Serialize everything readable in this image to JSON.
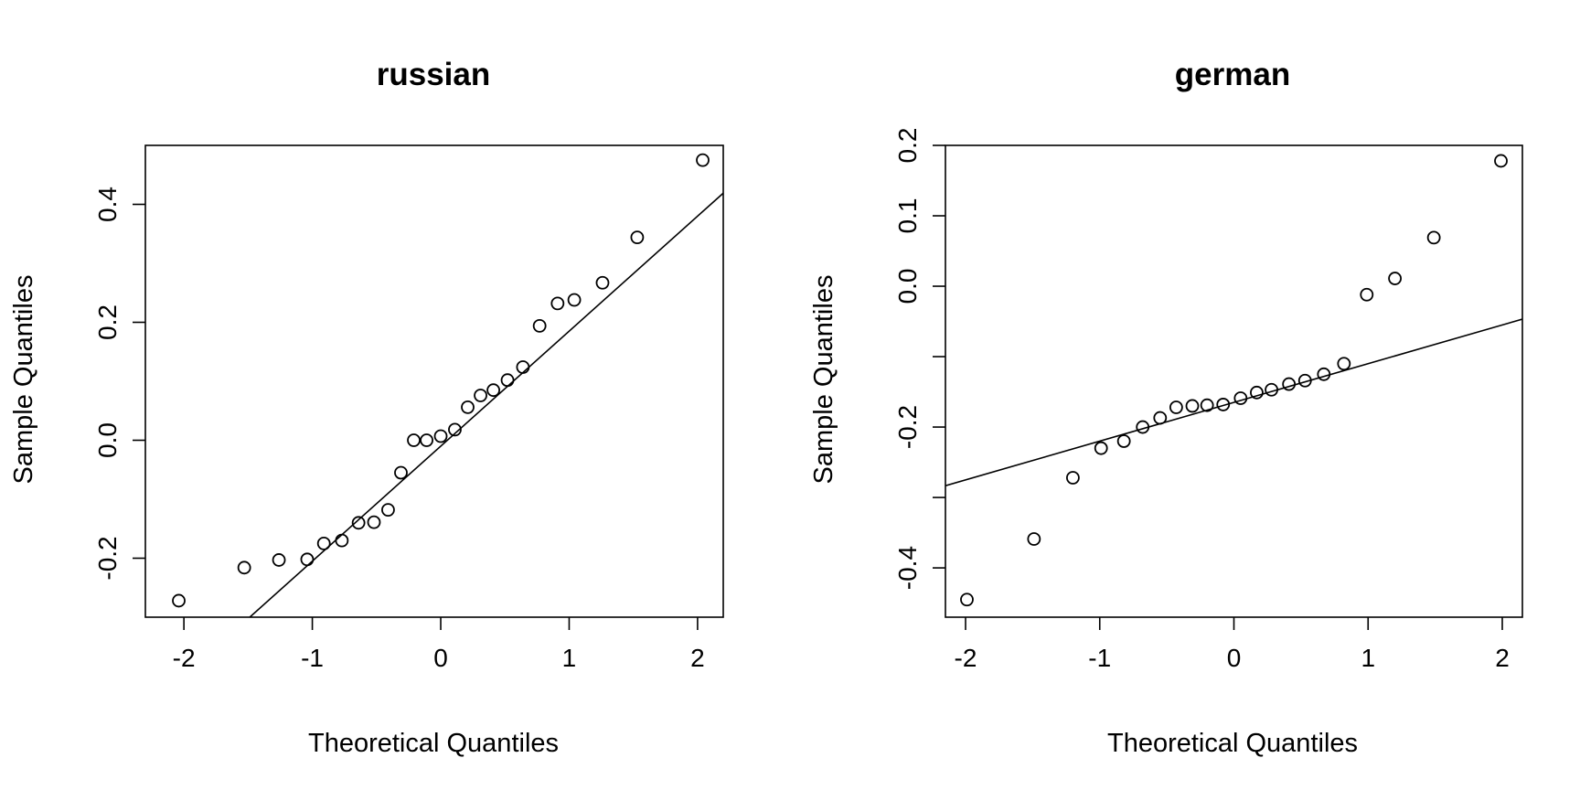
{
  "chart_data": [
    {
      "type": "scatter",
      "title": "russian",
      "xlabel": "Theoretical Quantiles",
      "ylabel": "Sample Quantiles",
      "xlim": [
        -2.3,
        2.2
      ],
      "ylim": [
        -0.3,
        0.5
      ],
      "xticks": [
        -2,
        -1,
        0,
        1,
        2
      ],
      "xtick_labels": [
        "-2",
        "-1",
        "0",
        "1",
        "2"
      ],
      "yticks": [
        -0.2,
        0.0,
        0.2,
        0.4
      ],
      "ytick_labels": [
        "-0.2",
        "0.0",
        "0.2",
        "0.4"
      ],
      "grid": false,
      "x": [
        -2.04,
        -1.53,
        -1.26,
        -1.04,
        -0.91,
        -0.77,
        -0.64,
        -0.52,
        -0.41,
        -0.31,
        -0.21,
        -0.11,
        0.0,
        0.11,
        0.21,
        0.31,
        0.41,
        0.52,
        0.64,
        0.77,
        0.91,
        1.04,
        1.26,
        1.53,
        2.04
      ],
      "y": [
        -0.272,
        -0.216,
        -0.203,
        -0.202,
        -0.175,
        -0.17,
        -0.14,
        -0.139,
        -0.118,
        -0.055,
        0.0,
        0.0,
        0.007,
        0.018,
        0.056,
        0.076,
        0.085,
        0.102,
        0.124,
        0.194,
        0.232,
        0.238,
        0.267,
        0.344,
        0.475
      ],
      "ref_line": {
        "slope": 0.195,
        "intercept": -0.01
      }
    },
    {
      "type": "scatter",
      "title": "german",
      "xlabel": "Theoretical Quantiles",
      "ylabel": "Sample Quantiles",
      "xlim": [
        -2.15,
        2.15
      ],
      "ylim": [
        -0.47,
        0.2
      ],
      "xticks": [
        -2,
        -1,
        0,
        1,
        2
      ],
      "xtick_labels": [
        "-2",
        "-1",
        "0",
        "1",
        "2"
      ],
      "yticks": [
        -0.4,
        -0.3,
        -0.2,
        -0.1,
        0.0,
        0.1,
        0.2
      ],
      "ytick_labels": [
        "-0.4",
        "",
        "-0.2",
        "",
        "0.0",
        "0.1",
        "0.2"
      ],
      "grid": false,
      "x": [
        -1.99,
        -1.49,
        -1.2,
        -0.99,
        -0.82,
        -0.68,
        -0.55,
        -0.43,
        -0.31,
        -0.2,
        -0.08,
        0.05,
        0.17,
        0.28,
        0.41,
        0.53,
        0.67,
        0.82,
        0.99,
        1.2,
        1.49,
        1.99
      ],
      "y": [
        -0.445,
        -0.359,
        -0.272,
        -0.23,
        -0.22,
        -0.2,
        -0.187,
        -0.172,
        -0.17,
        -0.169,
        -0.168,
        -0.159,
        -0.151,
        -0.147,
        -0.139,
        -0.134,
        -0.125,
        -0.11,
        -0.012,
        0.011,
        0.069,
        0.178
      ],
      "ref_line": {
        "slope": 0.055,
        "intercept": -0.165
      }
    }
  ]
}
